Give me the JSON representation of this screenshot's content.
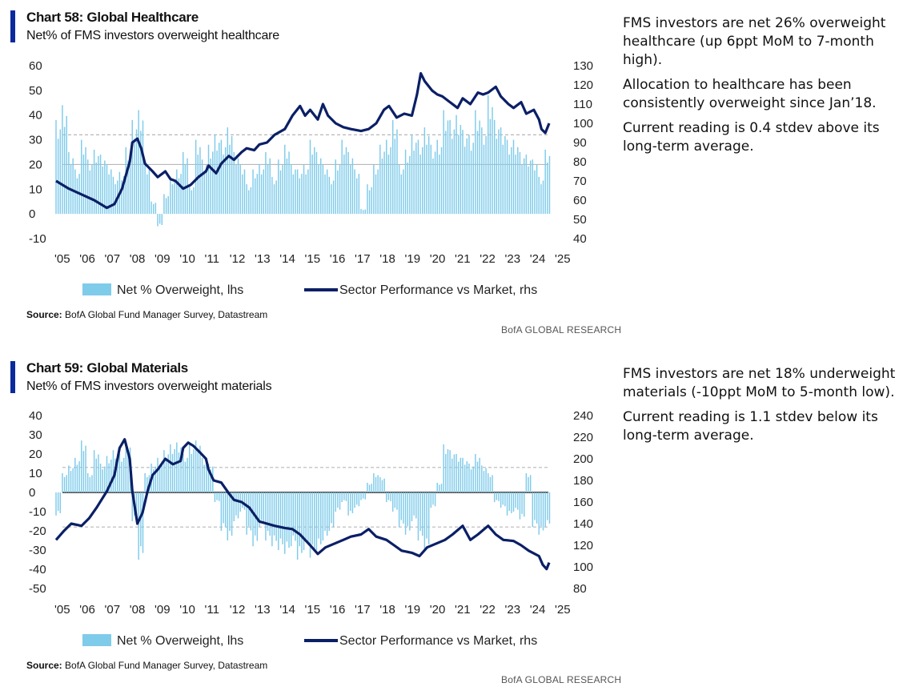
{
  "brand": "BofA GLOBAL RESEARCH",
  "colors": {
    "bars": "#7fcbea",
    "line": "#0b1f66",
    "accent": "#0a2a9e",
    "grid": "#b7b7b7"
  },
  "panels": [
    {
      "title": "Chart 58: Global Healthcare",
      "subtitle": "Net% of FMS investors overweight healthcare",
      "source_label": "Source:",
      "source_text": "BofA Global Fund Manager Survey, Datastream",
      "commentary": [
        "FMS investors are net 26% overweight healthcare (up 6ppt MoM to 7-month high).",
        "Allocation to healthcare has been consistently overweight since Jan’18.",
        "Current reading is 0.4 stdev above its long-term average."
      ]
    },
    {
      "title": "Chart 59: Global Materials",
      "subtitle": "Net% of FMS investors overweight materials",
      "source_label": "Source:",
      "source_text": "BofA Global Fund Manager Survey, Datastream",
      "commentary": [
        "FMS investors are net 18% underweight materials (-10ppt MoM to 5-month low).",
        "Current reading is 1.1 stdev below its long-term average."
      ]
    }
  ],
  "chart_data": [
    {
      "type": "bar",
      "x_ticks": [
        "'05",
        "'06",
        "'07",
        "'08",
        "'09",
        "'10",
        "'11",
        "'12",
        "'13",
        "'14",
        "'15",
        "'16",
        "'17",
        "'18",
        "'19",
        "'20",
        "'21",
        "'22",
        "'23",
        "'24",
        "'25"
      ],
      "xlim": [
        2005.0,
        2025.0
      ],
      "y_left": {
        "ticks": [
          60,
          50,
          40,
          30,
          20,
          10,
          0,
          -10
        ],
        "lim": [
          -10,
          60
        ]
      },
      "y_right": {
        "ticks": [
          130,
          120,
          110,
          100,
          90,
          80,
          70,
          60,
          50,
          40
        ],
        "lim": [
          40,
          130
        ]
      },
      "reference_lines": [
        {
          "value": 32,
          "style": "dashed"
        },
        {
          "value": 20,
          "style": "solid"
        }
      ],
      "legend": [
        "Net % Overweight, lhs",
        "Sector Performance vs Market, rhs"
      ],
      "bars_x": [
        2005.0,
        2005.25,
        2005.5,
        2005.75,
        2006.0,
        2006.25,
        2006.5,
        2006.75,
        2007.0,
        2007.25,
        2007.5,
        2007.75,
        2008.0,
        2008.25,
        2008.5,
        2008.75,
        2009.0,
        2009.25,
        2009.5,
        2009.75,
        2010.0,
        2010.25,
        2010.5,
        2010.75,
        2011.0,
        2011.25,
        2011.5,
        2011.75,
        2012.0,
        2012.25,
        2012.5,
        2012.75,
        2013.0,
        2013.25,
        2013.5,
        2013.75,
        2014.0,
        2014.25,
        2014.5,
        2014.75,
        2015.0,
        2015.25,
        2015.5,
        2015.75,
        2016.0,
        2016.25,
        2016.5,
        2016.75,
        2017.0,
        2017.25,
        2017.5,
        2017.75,
        2018.0,
        2018.25,
        2018.5,
        2018.75,
        2019.0,
        2019.25,
        2019.5,
        2019.75,
        2020.0,
        2020.25,
        2020.5,
        2020.75,
        2021.0,
        2021.25,
        2021.5,
        2021.75,
        2022.0,
        2022.25,
        2022.5,
        2022.75,
        2023.0,
        2023.25,
        2023.5,
        2023.75,
        2024.0,
        2024.25
      ],
      "bars_y": [
        38,
        44,
        25,
        18,
        30,
        22,
        26,
        24,
        20,
        15,
        17,
        27,
        38,
        42,
        20,
        5,
        -5,
        8,
        15,
        18,
        25,
        12,
        30,
        22,
        28,
        32,
        30,
        35,
        25,
        20,
        12,
        18,
        20,
        25,
        15,
        22,
        28,
        20,
        18,
        20,
        30,
        25,
        20,
        15,
        22,
        30,
        25,
        18,
        2,
        12,
        20,
        28,
        30,
        38,
        20,
        26,
        32,
        30,
        35,
        28,
        30,
        42,
        38,
        40,
        34,
        32,
        42,
        35,
        48,
        38,
        35,
        30,
        30,
        25,
        24,
        22,
        15,
        26
      ],
      "line_x": [
        2005.0,
        2005.5,
        2006.0,
        2006.5,
        2007.0,
        2007.3,
        2007.6,
        2007.9,
        2008.0,
        2008.2,
        2008.35,
        2008.5,
        2008.8,
        2009.0,
        2009.3,
        2009.5,
        2009.7,
        2010.0,
        2010.3,
        2010.6,
        2010.9,
        2011.0,
        2011.3,
        2011.5,
        2011.8,
        2012.0,
        2012.3,
        2012.5,
        2012.8,
        2013.0,
        2013.3,
        2013.6,
        2014.0,
        2014.3,
        2014.6,
        2014.8,
        2015.0,
        2015.3,
        2015.5,
        2015.7,
        2016.0,
        2016.3,
        2016.6,
        2017.0,
        2017.3,
        2017.6,
        2017.9,
        2018.1,
        2018.4,
        2018.7,
        2019.0,
        2019.2,
        2019.35,
        2019.5,
        2019.8,
        2020.0,
        2020.2,
        2020.5,
        2020.8,
        2021.0,
        2021.3,
        2021.6,
        2021.8,
        2022.0,
        2022.3,
        2022.5,
        2022.8,
        2023.0,
        2023.3,
        2023.5,
        2023.8,
        2024.0,
        2024.1,
        2024.25,
        2024.4
      ],
      "line_y": [
        70,
        66,
        63,
        60,
        56,
        58,
        66,
        80,
        90,
        92,
        87,
        79,
        75,
        72,
        75,
        71,
        70,
        66,
        68,
        72,
        75,
        78,
        74,
        79,
        83,
        81,
        85,
        87,
        86,
        89,
        90,
        94,
        97,
        104,
        109,
        104,
        107,
        102,
        110,
        104,
        100,
        98,
        97,
        96,
        97,
        100,
        107,
        109,
        103,
        105,
        104,
        115,
        126,
        122,
        117,
        115,
        114,
        111,
        108,
        113,
        110,
        116,
        115,
        116,
        119,
        114,
        110,
        108,
        111,
        105,
        107,
        102,
        97,
        95,
        100
      ]
    },
    {
      "type": "bar",
      "x_ticks": [
        "'05",
        "'06",
        "'07",
        "'08",
        "'09",
        "'10",
        "'11",
        "'12",
        "'13",
        "'14",
        "'15",
        "'16",
        "'17",
        "'18",
        "'19",
        "'20",
        "'21",
        "'22",
        "'23",
        "'24",
        "'25"
      ],
      "xlim": [
        2005.0,
        2025.0
      ],
      "y_left": {
        "ticks": [
          40,
          30,
          20,
          10,
          0,
          -10,
          -20,
          -30,
          -40,
          -50
        ],
        "lim": [
          -50,
          40
        ]
      },
      "y_right": {
        "ticks": [
          240,
          220,
          200,
          180,
          160,
          140,
          120,
          100,
          80
        ],
        "lim": [
          80,
          240
        ]
      },
      "reference_lines": [
        {
          "value": 13,
          "style": "dashed"
        },
        {
          "value": 0,
          "style": "solid"
        },
        {
          "value": -18,
          "style": "dashed"
        }
      ],
      "legend": [
        "Net % Overweight, lhs",
        "Sector Performance vs Market, rhs"
      ],
      "bars_x": [
        2005.0,
        2005.25,
        2005.5,
        2005.75,
        2006.0,
        2006.25,
        2006.5,
        2006.75,
        2007.0,
        2007.25,
        2007.5,
        2007.75,
        2008.0,
        2008.25,
        2008.5,
        2008.75,
        2009.0,
        2009.25,
        2009.5,
        2009.75,
        2010.0,
        2010.25,
        2010.5,
        2010.75,
        2011.0,
        2011.25,
        2011.5,
        2011.75,
        2012.0,
        2012.25,
        2012.5,
        2012.75,
        2013.0,
        2013.25,
        2013.5,
        2013.75,
        2014.0,
        2014.25,
        2014.5,
        2014.75,
        2015.0,
        2015.25,
        2015.5,
        2015.75,
        2016.0,
        2016.25,
        2016.5,
        2016.75,
        2017.0,
        2017.25,
        2017.5,
        2017.75,
        2018.0,
        2018.25,
        2018.5,
        2018.75,
        2019.0,
        2019.25,
        2019.5,
        2019.75,
        2020.0,
        2020.25,
        2020.5,
        2020.75,
        2021.0,
        2021.25,
        2021.5,
        2021.75,
        2022.0,
        2022.25,
        2022.5,
        2022.75,
        2023.0,
        2023.25,
        2023.5,
        2023.75,
        2024.0,
        2024.25
      ],
      "bars_y": [
        -12,
        10,
        14,
        18,
        27,
        10,
        22,
        15,
        19,
        22,
        20,
        26,
        -15,
        -35,
        10,
        15,
        18,
        22,
        25,
        26,
        20,
        25,
        27,
        18,
        15,
        -5,
        -20,
        -25,
        -15,
        -10,
        -22,
        -28,
        -18,
        -25,
        -28,
        -30,
        -32,
        -28,
        -35,
        -30,
        -34,
        -30,
        -25,
        -20,
        -10,
        -5,
        -12,
        -8,
        -4,
        5,
        10,
        8,
        -5,
        -10,
        -18,
        -22,
        -15,
        -25,
        -30,
        -8,
        5,
        25,
        22,
        20,
        18,
        15,
        20,
        14,
        10,
        -5,
        -8,
        -12,
        -10,
        -14,
        10,
        -18,
        -22,
        -18
      ],
      "line_x": [
        2005.0,
        2005.3,
        2005.6,
        2006.0,
        2006.3,
        2006.6,
        2007.0,
        2007.3,
        2007.5,
        2007.7,
        2007.9,
        2008.0,
        2008.2,
        2008.4,
        2008.6,
        2008.8,
        2009.0,
        2009.3,
        2009.6,
        2009.9,
        2010.0,
        2010.2,
        2010.4,
        2010.7,
        2010.9,
        2011.0,
        2011.2,
        2011.5,
        2011.8,
        2012.0,
        2012.3,
        2012.6,
        2013.0,
        2013.3,
        2013.6,
        2014.0,
        2014.3,
        2014.6,
        2015.0,
        2015.3,
        2015.6,
        2016.0,
        2016.3,
        2016.6,
        2017.0,
        2017.3,
        2017.6,
        2018.0,
        2018.3,
        2018.6,
        2019.0,
        2019.3,
        2019.6,
        2020.0,
        2020.3,
        2020.6,
        2021.0,
        2021.3,
        2021.6,
        2022.0,
        2022.3,
        2022.6,
        2023.0,
        2023.3,
        2023.6,
        2024.0,
        2024.15,
        2024.3,
        2024.4
      ],
      "line_y": [
        125,
        133,
        140,
        138,
        145,
        155,
        170,
        185,
        210,
        218,
        200,
        170,
        140,
        150,
        170,
        185,
        190,
        200,
        195,
        198,
        210,
        215,
        212,
        205,
        200,
        190,
        180,
        178,
        168,
        162,
        160,
        155,
        142,
        140,
        138,
        136,
        135,
        130,
        120,
        112,
        118,
        122,
        125,
        128,
        130,
        135,
        128,
        125,
        120,
        115,
        113,
        110,
        118,
        122,
        125,
        130,
        138,
        125,
        130,
        138,
        130,
        125,
        124,
        120,
        115,
        110,
        102,
        98,
        104
      ]
    }
  ]
}
